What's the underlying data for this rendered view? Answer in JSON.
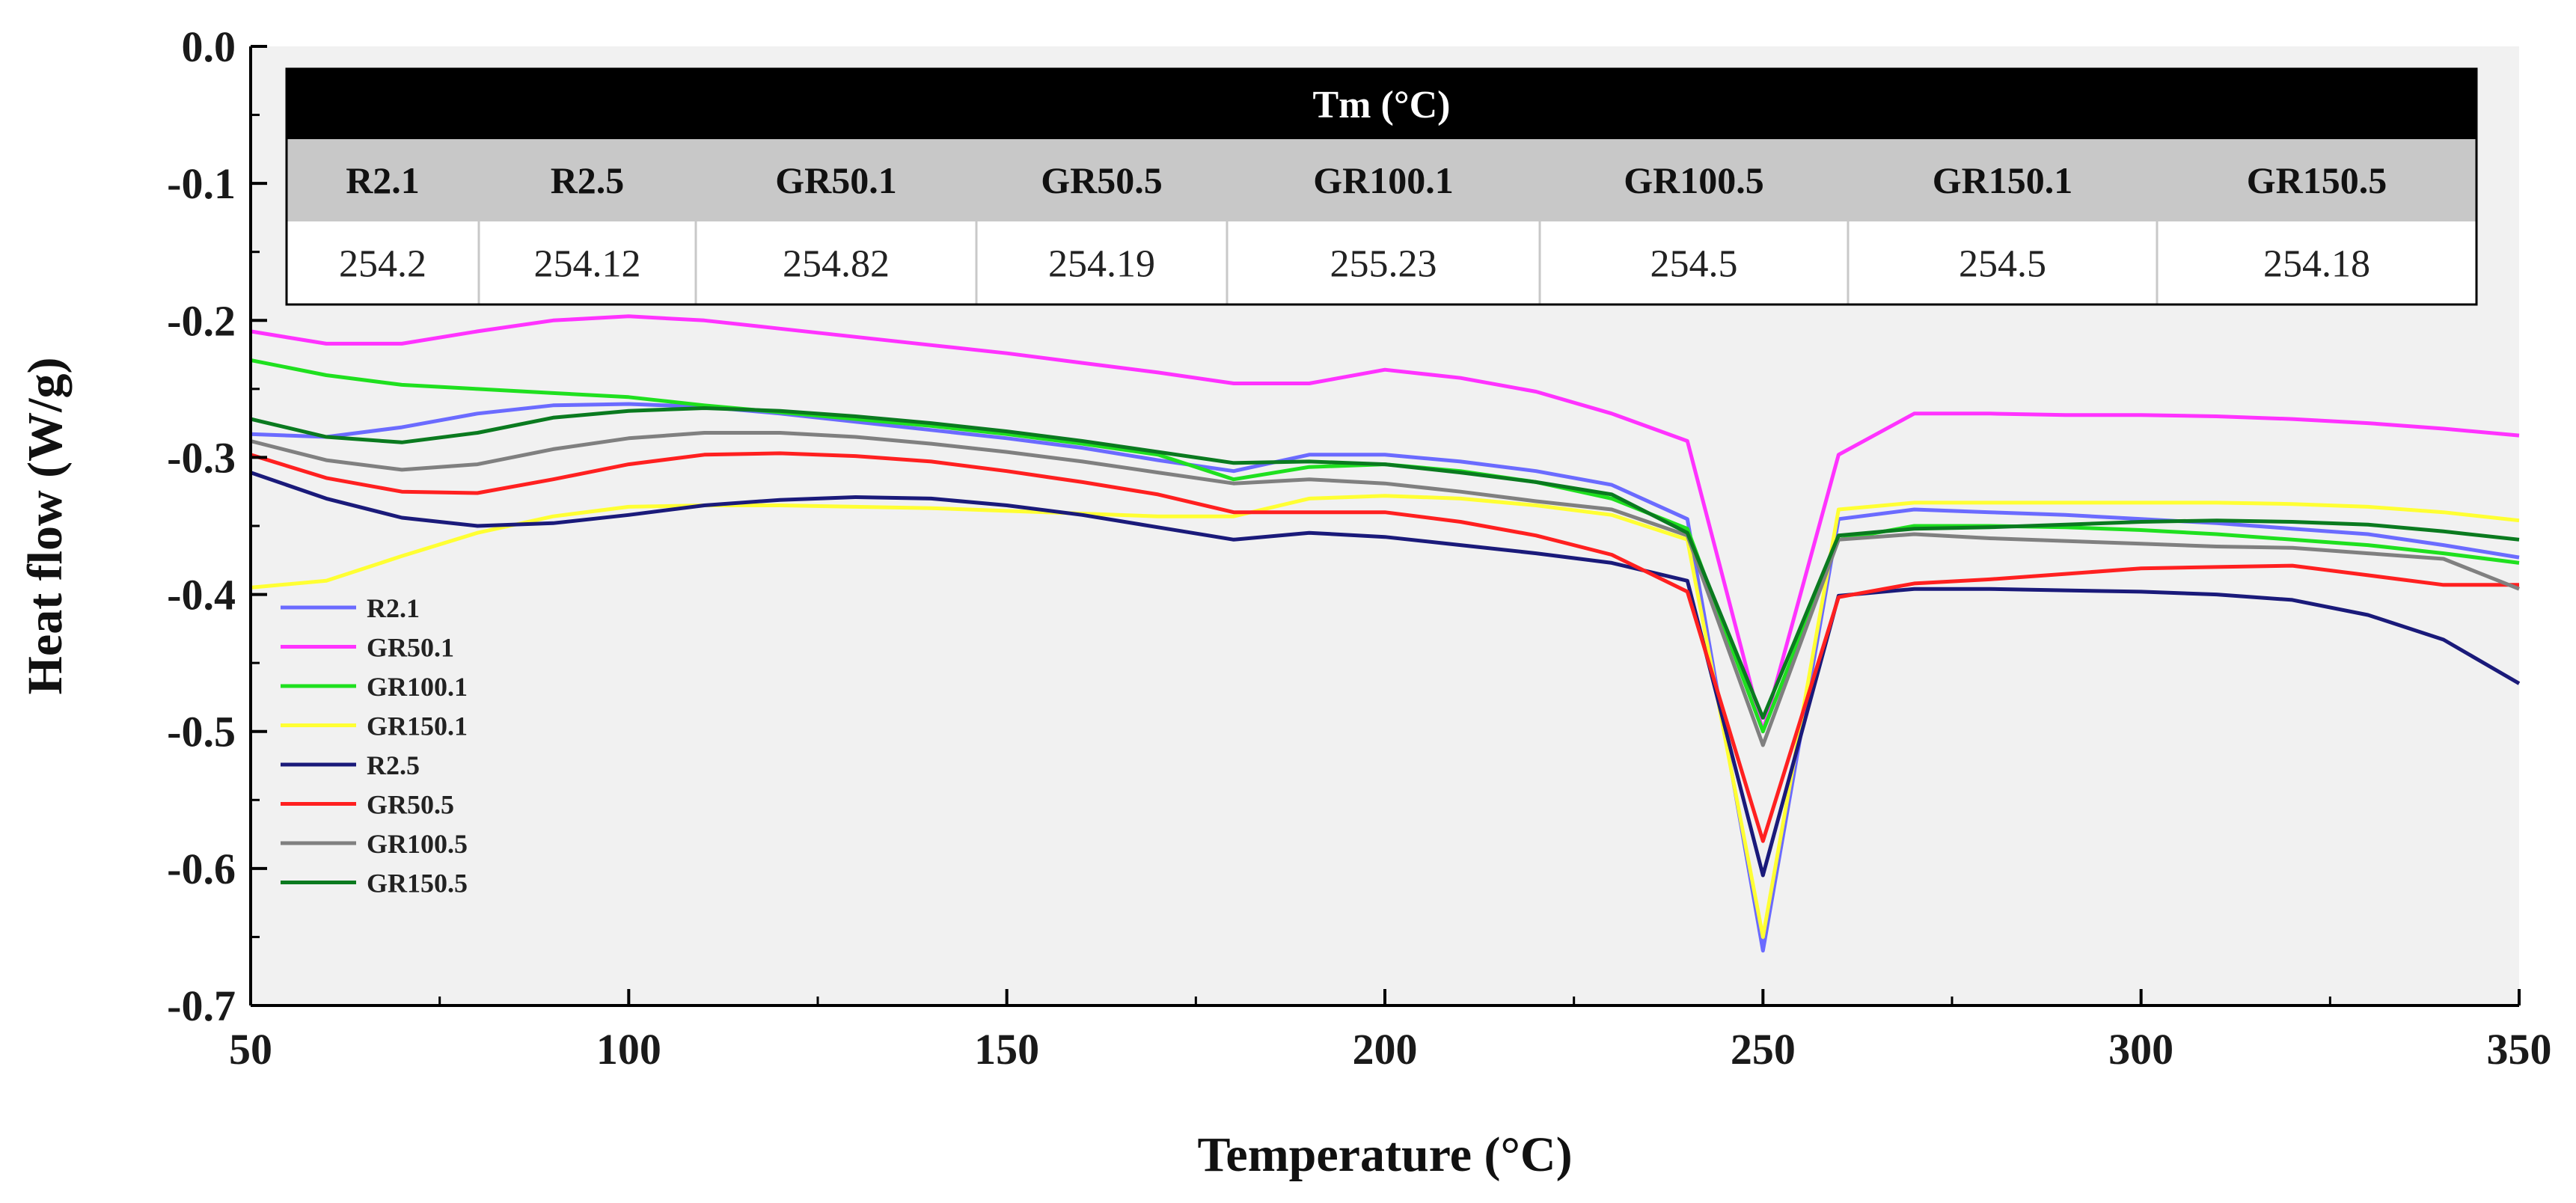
{
  "chart_data": {
    "type": "line",
    "title": "",
    "xlabel": "Temperature (°C)",
    "ylabel": "Heat flow (W/g)",
    "xlim": [
      50,
      350
    ],
    "ylim": [
      -0.7,
      0.0
    ],
    "xticks": [
      50,
      100,
      150,
      200,
      250,
      300,
      350
    ],
    "xtick_labels": [
      "50",
      "100",
      "150",
      "200",
      "250",
      "300",
      "350"
    ],
    "yticks": [
      0.0,
      -0.1,
      -0.2,
      -0.3,
      -0.4,
      -0.5,
      -0.6,
      -0.7
    ],
    "ytick_labels": [
      "0.0",
      "-0.1",
      "-0.2",
      "-0.3",
      "-0.4",
      "-0.5",
      "-0.6",
      "-0.7"
    ],
    "grid": false,
    "legend_position": "bottom-left",
    "x": [
      50,
      60,
      70,
      80,
      90,
      100,
      110,
      120,
      130,
      140,
      150,
      160,
      170,
      180,
      190,
      200,
      210,
      220,
      230,
      240,
      250,
      260,
      270,
      280,
      290,
      300,
      310,
      320,
      330,
      340,
      350
    ],
    "series": [
      {
        "name": "R2.1",
        "color": "#6b6bff",
        "values": [
          -0.283,
          -0.285,
          -0.278,
          -0.268,
          -0.262,
          -0.261,
          -0.263,
          -0.268,
          -0.274,
          -0.28,
          -0.286,
          -0.293,
          -0.302,
          -0.31,
          -0.298,
          -0.298,
          -0.303,
          -0.31,
          -0.32,
          -0.345,
          -0.66,
          -0.345,
          -0.338,
          -0.34,
          -0.342,
          -0.345,
          -0.348,
          -0.352,
          -0.356,
          -0.364,
          -0.373
        ]
      },
      {
        "name": "GR50.1",
        "color": "#ff33ff",
        "values": [
          -0.208,
          -0.217,
          -0.217,
          -0.208,
          -0.2,
          -0.197,
          -0.2,
          -0.206,
          -0.212,
          -0.218,
          -0.224,
          -0.231,
          -0.238,
          -0.246,
          -0.246,
          -0.236,
          -0.242,
          -0.252,
          -0.268,
          -0.288,
          -0.5,
          -0.298,
          -0.268,
          -0.268,
          -0.269,
          -0.269,
          -0.27,
          -0.272,
          -0.275,
          -0.279,
          -0.284
        ]
      },
      {
        "name": "GR100.1",
        "color": "#1fe01f",
        "values": [
          -0.229,
          -0.24,
          -0.247,
          -0.25,
          -0.253,
          -0.256,
          -0.262,
          -0.267,
          -0.272,
          -0.277,
          -0.283,
          -0.29,
          -0.298,
          -0.316,
          -0.307,
          -0.305,
          -0.31,
          -0.318,
          -0.33,
          -0.352,
          -0.5,
          -0.36,
          -0.35,
          -0.35,
          -0.351,
          -0.353,
          -0.356,
          -0.36,
          -0.364,
          -0.37,
          -0.377
        ]
      },
      {
        "name": "GR150.1",
        "color": "#ffff33",
        "values": [
          -0.395,
          -0.39,
          -0.372,
          -0.355,
          -0.343,
          -0.336,
          -0.335,
          -0.335,
          -0.336,
          -0.337,
          -0.339,
          -0.341,
          -0.343,
          -0.343,
          -0.33,
          -0.328,
          -0.33,
          -0.335,
          -0.342,
          -0.36,
          -0.65,
          -0.338,
          -0.333,
          -0.333,
          -0.333,
          -0.333,
          -0.333,
          -0.334,
          -0.336,
          -0.34,
          -0.346
        ]
      },
      {
        "name": "R2.5",
        "color": "#1a1a7a",
        "values": [
          -0.311,
          -0.33,
          -0.344,
          -0.35,
          -0.348,
          -0.342,
          -0.335,
          -0.331,
          -0.329,
          -0.33,
          -0.335,
          -0.342,
          -0.351,
          -0.36,
          -0.355,
          -0.358,
          -0.364,
          -0.37,
          -0.377,
          -0.39,
          -0.605,
          -0.401,
          -0.396,
          -0.396,
          -0.397,
          -0.398,
          -0.4,
          -0.404,
          -0.415,
          -0.433,
          -0.465
        ]
      },
      {
        "name": "GR50.5",
        "color": "#ff2020",
        "values": [
          -0.298,
          -0.315,
          -0.325,
          -0.326,
          -0.316,
          -0.305,
          -0.298,
          -0.297,
          -0.299,
          -0.303,
          -0.31,
          -0.318,
          -0.327,
          -0.34,
          -0.34,
          -0.34,
          -0.347,
          -0.357,
          -0.371,
          -0.398,
          -0.58,
          -0.402,
          -0.392,
          -0.389,
          -0.385,
          -0.381,
          -0.38,
          -0.379,
          -0.386,
          -0.393,
          -0.393
        ]
      },
      {
        "name": "GR100.5",
        "color": "#808080",
        "values": [
          -0.288,
          -0.302,
          -0.309,
          -0.305,
          -0.294,
          -0.286,
          -0.282,
          -0.282,
          -0.285,
          -0.29,
          -0.296,
          -0.303,
          -0.311,
          -0.319,
          -0.316,
          -0.319,
          -0.325,
          -0.332,
          -0.338,
          -0.357,
          -0.51,
          -0.36,
          -0.356,
          -0.359,
          -0.361,
          -0.363,
          -0.365,
          -0.366,
          -0.37,
          -0.374,
          -0.396
        ]
      },
      {
        "name": "GR150.5",
        "color": "#0a7a1f",
        "values": [
          -0.272,
          -0.285,
          -0.289,
          -0.282,
          -0.271,
          -0.266,
          -0.264,
          -0.266,
          -0.27,
          -0.275,
          -0.281,
          -0.288,
          -0.296,
          -0.304,
          -0.303,
          -0.305,
          -0.311,
          -0.318,
          -0.327,
          -0.355,
          -0.49,
          -0.357,
          -0.352,
          -0.351,
          -0.349,
          -0.347,
          -0.346,
          -0.347,
          -0.349,
          -0.354,
          -0.36
        ]
      }
    ],
    "inset_table": {
      "title": "Tm (°C)",
      "headers": [
        "R2.1",
        "R2.5",
        "GR50.1",
        "GR50.5",
        "GR100.1",
        "GR100.5",
        "GR150.1",
        "GR150.5"
      ],
      "values": [
        "254.2",
        "254.12",
        "254.82",
        "254.19",
        "255.23",
        "254.5",
        "254.5",
        "254.18"
      ]
    }
  }
}
